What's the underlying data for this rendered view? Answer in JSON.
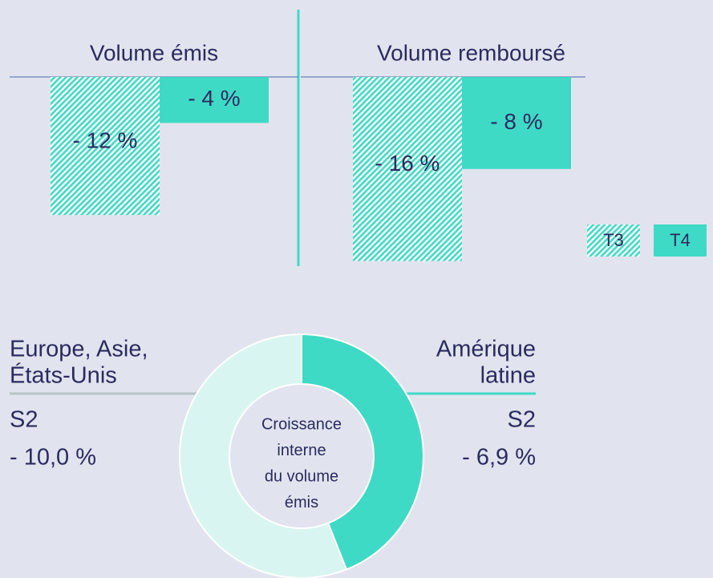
{
  "chart_data": [
    {
      "type": "bar",
      "categories": [
        "Volume émis",
        "Volume remboursé"
      ],
      "series": [
        {
          "name": "T3",
          "color": "#3fdac6",
          "pattern": "hatch",
          "values": [
            -12,
            -16
          ],
          "value_labels": [
            "- 12 %",
            "- 16 %"
          ]
        },
        {
          "name": "T4",
          "color": "#3fdac6",
          "values": [
            -4,
            -8
          ],
          "value_labels": [
            "- 4 %",
            "- 8 %"
          ]
        }
      ]
    },
    {
      "type": "pie",
      "center_text": [
        "Croissance",
        "interne",
        "du volume",
        "émis"
      ],
      "segments": [
        {
          "name": [
            "Amérique",
            "latine"
          ],
          "period": "S2",
          "growth": "- 6,9 %",
          "value": 44,
          "color": "#3fdac6"
        },
        {
          "name": [
            "Europe, Asie,",
            "États-Unis"
          ],
          "period": "S2",
          "growth": "- 10,0 %",
          "value": 56,
          "color": "#d8f5f1"
        }
      ]
    }
  ]
}
